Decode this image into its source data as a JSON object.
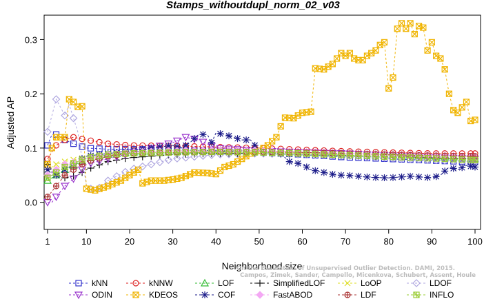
{
  "chart_data": {
    "type": "line",
    "title": "Stamps_withoutdupl_norm_02_v03",
    "xlabel": "Neighborhood size",
    "ylabel": "Adjusted AP",
    "xlim": [
      1,
      100
    ],
    "ylim": [
      -0.05,
      0.345
    ],
    "x_ticks": [
      1,
      10,
      20,
      30,
      40,
      50,
      60,
      70,
      80,
      90,
      100
    ],
    "y_ticks": [
      0.0,
      0.1,
      0.2,
      0.3
    ],
    "y_tick_labels": [
      "0.0",
      "0.1",
      "0.2",
      "0.3"
    ],
    "grid": false,
    "legend_position": "bottom",
    "series": [
      {
        "name": "kNN",
        "color": "#3333cc",
        "marker": "square",
        "points": [
          [
            1,
            0.105
          ],
          [
            2,
            0.125
          ],
          [
            3,
            0.125
          ],
          [
            5,
            0.115
          ],
          [
            7,
            0.108
          ],
          [
            10,
            0.1
          ],
          [
            15,
            0.098
          ],
          [
            20,
            0.098
          ],
          [
            30,
            0.097
          ],
          [
            40,
            0.095
          ],
          [
            50,
            0.092
          ],
          [
            60,
            0.088
          ],
          [
            70,
            0.083
          ],
          [
            80,
            0.08
          ],
          [
            90,
            0.077
          ],
          [
            100,
            0.074
          ]
        ]
      },
      {
        "name": "kNNW",
        "color": "#dd2222",
        "marker": "circle",
        "points": [
          [
            1,
            0.08
          ],
          [
            3,
            0.105
          ],
          [
            5,
            0.115
          ],
          [
            7,
            0.12
          ],
          [
            10,
            0.115
          ],
          [
            15,
            0.108
          ],
          [
            20,
            0.105
          ],
          [
            30,
            0.104
          ],
          [
            40,
            0.102
          ],
          [
            50,
            0.1
          ],
          [
            60,
            0.097
          ],
          [
            70,
            0.094
          ],
          [
            80,
            0.092
          ],
          [
            90,
            0.09
          ],
          [
            100,
            0.09
          ]
        ]
      },
      {
        "name": "LOF",
        "color": "#33bb33",
        "marker": "triangle",
        "points": [
          [
            1,
            0.04
          ],
          [
            3,
            0.05
          ],
          [
            5,
            0.06
          ],
          [
            8,
            0.072
          ],
          [
            10,
            0.08
          ],
          [
            15,
            0.088
          ],
          [
            20,
            0.092
          ],
          [
            30,
            0.095
          ],
          [
            40,
            0.096
          ],
          [
            50,
            0.095
          ],
          [
            60,
            0.092
          ],
          [
            70,
            0.09
          ],
          [
            80,
            0.088
          ],
          [
            90,
            0.085
          ],
          [
            100,
            0.08
          ]
        ]
      },
      {
        "name": "SimplifiedLOF",
        "color": "#111111",
        "marker": "plus",
        "points": [
          [
            1,
            0.07
          ],
          [
            3,
            0.05
          ],
          [
            5,
            0.045
          ],
          [
            8,
            0.05
          ],
          [
            10,
            0.06
          ],
          [
            15,
            0.075
          ],
          [
            20,
            0.082
          ],
          [
            30,
            0.088
          ],
          [
            40,
            0.09
          ],
          [
            50,
            0.09
          ],
          [
            60,
            0.088
          ],
          [
            70,
            0.086
          ],
          [
            80,
            0.084
          ],
          [
            90,
            0.082
          ],
          [
            100,
            0.08
          ]
        ]
      },
      {
        "name": "LoOP",
        "color": "#dddd22",
        "marker": "x",
        "points": [
          [
            1,
            0.06
          ],
          [
            3,
            0.07
          ],
          [
            5,
            0.075
          ],
          [
            8,
            0.08
          ],
          [
            10,
            0.082
          ],
          [
            15,
            0.086
          ],
          [
            20,
            0.09
          ],
          [
            30,
            0.092
          ],
          [
            40,
            0.092
          ],
          [
            50,
            0.092
          ],
          [
            60,
            0.09
          ],
          [
            70,
            0.088
          ],
          [
            80,
            0.086
          ],
          [
            90,
            0.085
          ],
          [
            100,
            0.084
          ]
        ]
      },
      {
        "name": "LDOF",
        "color": "#b0a8e0",
        "marker": "diamond",
        "points": [
          [
            1,
            0.13
          ],
          [
            3,
            0.19
          ],
          [
            5,
            0.16
          ],
          [
            6,
            0.18
          ],
          [
            8,
            0.13
          ],
          [
            10,
            0.03
          ],
          [
            12,
            0.02
          ],
          [
            15,
            0.04
          ],
          [
            20,
            0.06
          ],
          [
            30,
            0.08
          ],
          [
            40,
            0.088
          ],
          [
            50,
            0.09
          ],
          [
            60,
            0.088
          ],
          [
            70,
            0.086
          ],
          [
            80,
            0.082
          ],
          [
            90,
            0.078
          ],
          [
            100,
            0.075
          ]
        ]
      },
      {
        "name": "ODIN",
        "color": "#9933cc",
        "marker": "triangle-down",
        "points": [
          [
            1,
            0.0
          ],
          [
            2,
            0.0
          ],
          [
            3,
            0.01
          ],
          [
            5,
            0.03
          ],
          [
            8,
            0.05
          ],
          [
            10,
            0.07
          ],
          [
            15,
            0.08
          ],
          [
            20,
            0.09
          ],
          [
            25,
            0.1
          ],
          [
            30,
            0.11
          ],
          [
            33,
            0.12
          ],
          [
            36,
            0.115
          ],
          [
            40,
            0.1
          ],
          [
            50,
            0.095
          ],
          [
            60,
            0.092
          ],
          [
            70,
            0.09
          ],
          [
            80,
            0.086
          ],
          [
            90,
            0.083
          ],
          [
            100,
            0.08
          ]
        ]
      },
      {
        "name": "KDEOS",
        "color": "#f0b400",
        "marker": "boxx",
        "points": [
          [
            1,
            0.07
          ],
          [
            2,
            0.1
          ],
          [
            3,
            0.12
          ],
          [
            4,
            0.12
          ],
          [
            5,
            0.12
          ],
          [
            6,
            0.19
          ],
          [
            7,
            0.185
          ],
          [
            8,
            0.176
          ],
          [
            9,
            0.177
          ],
          [
            10,
            0.025
          ],
          [
            12,
            0.022
          ],
          [
            15,
            0.03
          ],
          [
            18,
            0.04
          ],
          [
            20,
            0.05
          ],
          [
            22,
            0.06
          ],
          [
            23,
            0.035
          ],
          [
            25,
            0.04
          ],
          [
            28,
            0.04
          ],
          [
            30,
            0.042
          ],
          [
            32,
            0.045
          ],
          [
            35,
            0.055
          ],
          [
            38,
            0.054
          ],
          [
            40,
            0.052
          ],
          [
            42,
            0.065
          ],
          [
            44,
            0.07
          ],
          [
            46,
            0.08
          ],
          [
            48,
            0.09
          ],
          [
            50,
            0.095
          ],
          [
            52,
            0.105
          ],
          [
            54,
            0.12
          ],
          [
            55,
            0.14
          ],
          [
            56,
            0.156
          ],
          [
            58,
            0.155
          ],
          [
            60,
            0.165
          ],
          [
            62,
            0.167
          ],
          [
            63,
            0.247
          ],
          [
            65,
            0.245
          ],
          [
            66,
            0.25
          ],
          [
            67,
            0.255
          ],
          [
            68,
            0.265
          ],
          [
            69,
            0.275
          ],
          [
            70,
            0.27
          ],
          [
            71,
            0.275
          ],
          [
            72,
            0.265
          ],
          [
            73,
            0.262
          ],
          [
            74,
            0.262
          ],
          [
            75,
            0.27
          ],
          [
            76,
            0.275
          ],
          [
            77,
            0.28
          ],
          [
            78,
            0.29
          ],
          [
            79,
            0.295
          ],
          [
            80,
            0.21
          ],
          [
            81,
            0.23
          ],
          [
            82,
            0.32
          ],
          [
            83,
            0.33
          ],
          [
            84,
            0.32
          ],
          [
            85,
            0.33
          ],
          [
            86,
            0.31
          ],
          [
            87,
            0.325
          ],
          [
            88,
            0.322
          ],
          [
            89,
            0.28
          ],
          [
            90,
            0.295
          ],
          [
            91,
            0.27
          ],
          [
            92,
            0.265
          ],
          [
            93,
            0.245
          ],
          [
            94,
            0.2
          ],
          [
            95,
            0.17
          ],
          [
            96,
            0.165
          ],
          [
            97,
            0.175
          ],
          [
            98,
            0.185
          ],
          [
            99,
            0.15
          ],
          [
            100,
            0.152
          ]
        ]
      },
      {
        "name": "COF",
        "color": "#1a1a88",
        "marker": "star",
        "points": [
          [
            1,
            0.06
          ],
          [
            3,
            0.05
          ],
          [
            5,
            0.06
          ],
          [
            8,
            0.075
          ],
          [
            10,
            0.085
          ],
          [
            15,
            0.09
          ],
          [
            20,
            0.095
          ],
          [
            25,
            0.1
          ],
          [
            30,
            0.105
          ],
          [
            32,
            0.1
          ],
          [
            34,
            0.11
          ],
          [
            36,
            0.125
          ],
          [
            38,
            0.125
          ],
          [
            39,
            0.11
          ],
          [
            40,
            0.128
          ],
          [
            42,
            0.125
          ],
          [
            44,
            0.12
          ],
          [
            46,
            0.115
          ],
          [
            48,
            0.115
          ],
          [
            50,
            0.095
          ],
          [
            52,
            0.092
          ],
          [
            55,
            0.09
          ],
          [
            57,
            0.075
          ],
          [
            60,
            0.07
          ],
          [
            62,
            0.06
          ],
          [
            65,
            0.055
          ],
          [
            68,
            0.05
          ],
          [
            70,
            0.05
          ],
          [
            73,
            0.048
          ],
          [
            76,
            0.046
          ],
          [
            80,
            0.045
          ],
          [
            85,
            0.048
          ],
          [
            90,
            0.045
          ],
          [
            92,
            0.05
          ],
          [
            94,
            0.065
          ],
          [
            96,
            0.06
          ],
          [
            98,
            0.068
          ],
          [
            100,
            0.065
          ]
        ]
      },
      {
        "name": "FastABOD",
        "color": "#f4a8f4",
        "marker": "diamond-fill",
        "points": [
          [
            1,
            0.05
          ],
          [
            3,
            0.06
          ],
          [
            5,
            0.07
          ],
          [
            8,
            0.075
          ],
          [
            10,
            0.08
          ],
          [
            15,
            0.088
          ],
          [
            20,
            0.092
          ],
          [
            30,
            0.095
          ],
          [
            40,
            0.096
          ],
          [
            50,
            0.095
          ],
          [
            60,
            0.093
          ],
          [
            70,
            0.09
          ],
          [
            80,
            0.088
          ],
          [
            90,
            0.086
          ],
          [
            100,
            0.084
          ]
        ]
      },
      {
        "name": "LDF",
        "color": "#aa3333",
        "marker": "circle-plus",
        "points": [
          [
            1,
            0.01
          ],
          [
            3,
            0.03
          ],
          [
            5,
            0.05
          ],
          [
            8,
            0.065
          ],
          [
            10,
            0.075
          ],
          [
            15,
            0.085
          ],
          [
            20,
            0.09
          ],
          [
            30,
            0.092
          ],
          [
            40,
            0.093
          ],
          [
            50,
            0.093
          ],
          [
            60,
            0.092
          ],
          [
            70,
            0.09
          ],
          [
            80,
            0.088
          ],
          [
            90,
            0.086
          ],
          [
            100,
            0.085
          ]
        ]
      },
      {
        "name": "INFLO",
        "color": "#99cc33",
        "marker": "square-star",
        "points": [
          [
            1,
            0.045
          ],
          [
            3,
            0.055
          ],
          [
            5,
            0.065
          ],
          [
            8,
            0.075
          ],
          [
            10,
            0.082
          ],
          [
            15,
            0.088
          ],
          [
            20,
            0.09
          ],
          [
            30,
            0.092
          ],
          [
            40,
            0.093
          ],
          [
            50,
            0.092
          ],
          [
            60,
            0.09
          ],
          [
            70,
            0.087
          ],
          [
            80,
            0.084
          ],
          [
            90,
            0.081
          ],
          [
            100,
            0.078
          ]
        ]
      }
    ],
    "watermark_lines": [
      "Campos, Zimek, Sander, Campello, Micenkova, Schubert, Assent, Houle",
      "On the Evaluation of Unsupervised Outlier Detection. DAMI, 2015."
    ]
  }
}
